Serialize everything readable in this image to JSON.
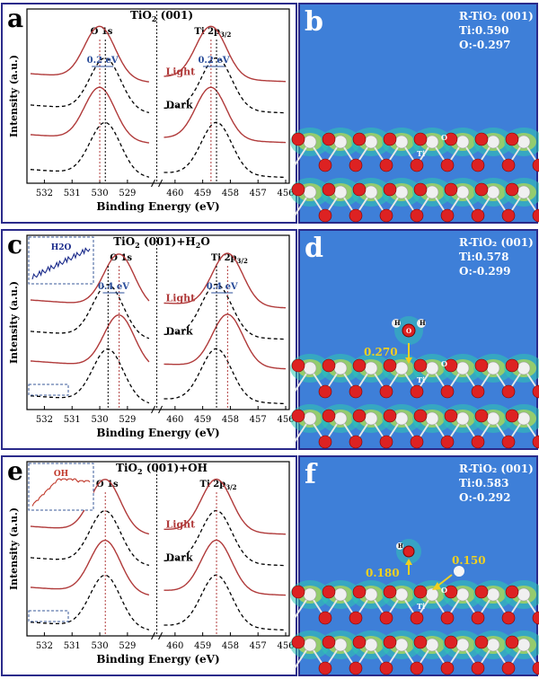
{
  "chart_data": [
    {
      "type": "line",
      "panel": "a",
      "title": "TiO2 (001)",
      "xlabel": "Binding Energy (eV)",
      "ylabel": "Intensity (a.u.)",
      "xlim_o1s": [
        532.5,
        528.2
      ],
      "xlim_ti2p": [
        460.4,
        456.0
      ],
      "ticks_o1s": [
        "532",
        "531",
        "530",
        "529"
      ],
      "ticks_ti2p": [
        "460",
        "459",
        "458",
        "457",
        "456"
      ],
      "peak_labels": [
        "O 1s",
        "Ti 2p3/2"
      ],
      "shift_labels": [
        "0.2 eV",
        "0.2 eV"
      ],
      "state_labels": [
        "Light",
        "Dark"
      ],
      "inset": null,
      "series": [
        {
          "name": "Light",
          "style": "solid-red",
          "o1s_peak": 530.0,
          "ti2p_peak": 458.7
        },
        {
          "name": "Dark",
          "style": "dashed-black",
          "o1s_peak": 529.8,
          "ti2p_peak": 458.5
        },
        {
          "name": "Light",
          "style": "solid-red",
          "o1s_peak": 530.0,
          "ti2p_peak": 458.7
        },
        {
          "name": "Dark",
          "style": "dashed-black",
          "o1s_peak": 529.8,
          "ti2p_peak": 458.5
        }
      ]
    },
    {
      "type": "line",
      "panel": "c",
      "title": "TiO2 (001)+H2O",
      "xlabel": "Binding Energy (eV)",
      "ylabel": "Intensity (a.u.)",
      "xlim_o1s": [
        532.5,
        528.2
      ],
      "xlim_ti2p": [
        460.4,
        456.0
      ],
      "ticks_o1s": [
        "532",
        "531",
        "530",
        "529"
      ],
      "ticks_ti2p": [
        "460",
        "459",
        "458",
        "457",
        "456"
      ],
      "peak_labels": [
        "O 1s",
        "Ti 2p3/2"
      ],
      "shift_labels": [
        "0.4 eV",
        "0.4 eV"
      ],
      "state_labels": [
        "Light",
        "Dark"
      ],
      "inset": {
        "label": "H2O",
        "trend": "rising"
      },
      "series": [
        {
          "name": "Light",
          "style": "solid-red",
          "o1s_peak": 529.3,
          "ti2p_peak": 458.1
        },
        {
          "name": "Dark",
          "style": "dashed-black",
          "o1s_peak": 529.7,
          "ti2p_peak": 458.5
        },
        {
          "name": "Light",
          "style": "solid-red",
          "o1s_peak": 529.3,
          "ti2p_peak": 458.1
        },
        {
          "name": "Dark",
          "style": "dashed-black",
          "o1s_peak": 529.7,
          "ti2p_peak": 458.5
        }
      ]
    },
    {
      "type": "line",
      "panel": "e",
      "title": "TiO2 (001)+OH",
      "xlabel": "Binding Energy (eV)",
      "ylabel": "Intensity (a.u.)",
      "xlim_o1s": [
        532.5,
        528.2
      ],
      "xlim_ti2p": [
        460.4,
        456.0
      ],
      "ticks_o1s": [
        "532",
        "531",
        "530",
        "529"
      ],
      "ticks_ti2p": [
        "460",
        "459",
        "458",
        "457",
        "456"
      ],
      "peak_labels": [
        "O 1s",
        "Ti 2p3/2"
      ],
      "shift_labels": [],
      "state_labels": [
        "Light",
        "Dark"
      ],
      "inset": {
        "label": "OH",
        "trend": "rising-plateau"
      },
      "series": [
        {
          "name": "Light",
          "style": "solid-red",
          "o1s_peak": 529.8,
          "ti2p_peak": 458.5
        },
        {
          "name": "Dark",
          "style": "dashed-black",
          "o1s_peak": 529.8,
          "ti2p_peak": 458.5
        },
        {
          "name": "Light",
          "style": "solid-red",
          "o1s_peak": 529.8,
          "ti2p_peak": 458.5
        },
        {
          "name": "Dark",
          "style": "dashed-black",
          "o1s_peak": 529.8,
          "ti2p_peak": 458.5
        }
      ]
    }
  ],
  "panels": {
    "a": {
      "letter": "a",
      "title_pre": "TiO",
      "title_sub": "2",
      "title_post": " (001)"
    },
    "c": {
      "letter": "c",
      "title_pre": "TiO",
      "title_sub": "2",
      "title_post": " (001)+H",
      "title_sub2": "2",
      "title_post2": "O"
    },
    "e": {
      "letter": "e",
      "title_pre": "TiO",
      "title_sub": "2",
      "title_post": " (001)+OH"
    },
    "b": {
      "letter": "b",
      "line1": "R-TiO₂ (001)",
      "line2": "Ti:0.590",
      "line3": "O:-0.297"
    },
    "d": {
      "letter": "d",
      "line1": "R-TiO₂ (001)",
      "line2": "Ti:0.578",
      "line3": "O:-0.299",
      "transfer": "0.270"
    },
    "f": {
      "letter": "f",
      "line1": "R-TiO₂ (001)",
      "line2": "Ti:0.583",
      "line3": "O:-0.292",
      "transfer_a": "0.180",
      "transfer_b": "0.150"
    }
  },
  "common": {
    "xlabel": "Binding Energy (eV)",
    "ylabel": "Intensity (a.u.)",
    "peak_o": "O 1s",
    "peak_ti_main": "Ti 2p",
    "peak_ti_sub": "3/2",
    "light": "Light",
    "dark": "Dark",
    "atom_ti": "Ti",
    "atom_o": "O",
    "atom_h": "H"
  },
  "colors": {
    "frame": "#2a2a8a",
    "light_curve": "#b03a3a",
    "dark_curve": "#000000",
    "shift_text": "#2a4d9a",
    "inset_h2o": "#1a2a8a",
    "inset_oh": "#c0392b",
    "light_text": "#b03a3a",
    "dft_bg": "#3e7fd8",
    "dft_label": "#ffffff",
    "arrow": "#f0d020"
  }
}
